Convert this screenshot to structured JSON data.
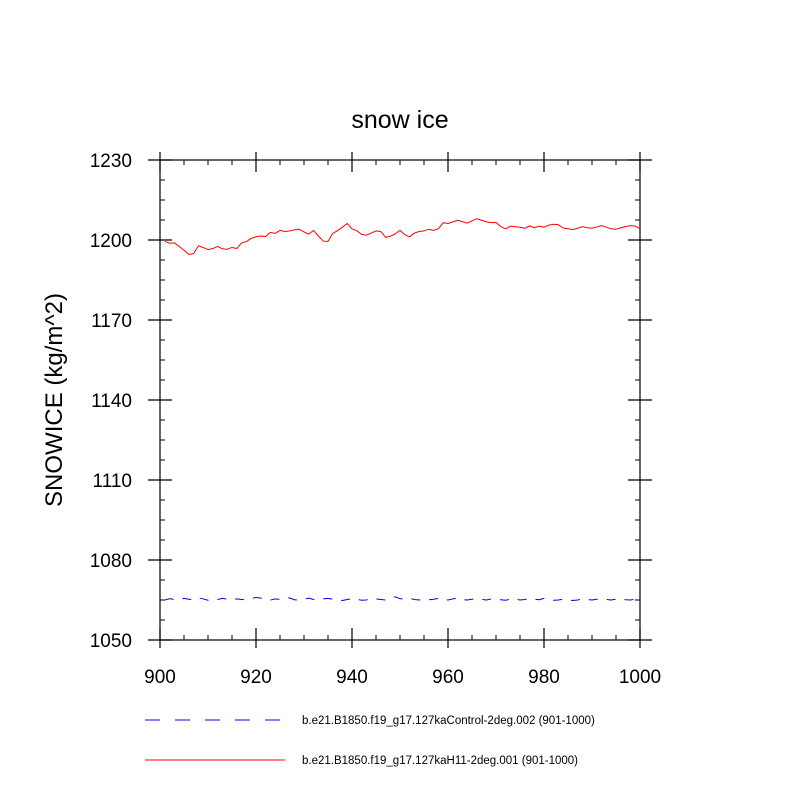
{
  "chart_data": {
    "type": "line",
    "title": "snow ice",
    "xlabel": "",
    "ylabel": "SNOWICE  (kg/m^2)",
    "xlim": [
      900,
      1000
    ],
    "ylim": [
      1050,
      1230
    ],
    "xticks": [
      900,
      920,
      940,
      960,
      980,
      1000
    ],
    "yticks": [
      1050,
      1080,
      1110,
      1140,
      1170,
      1200,
      1230
    ],
    "grid": false,
    "legend_position": "bottom",
    "series": [
      {
        "name": "b.e21.B1850.f19_g17.127kaControl-2deg.002 (901-1000)",
        "color": "#0000ff",
        "dash": "dashed",
        "x": [
          901,
          902,
          903,
          904,
          905,
          906,
          907,
          908,
          909,
          910,
          911,
          912,
          913,
          914,
          915,
          916,
          917,
          918,
          919,
          920,
          921,
          922,
          923,
          924,
          925,
          926,
          927,
          928,
          929,
          930,
          931,
          932,
          933,
          934,
          935,
          936,
          937,
          938,
          939,
          940,
          941,
          942,
          943,
          944,
          945,
          946,
          947,
          948,
          949,
          950,
          951,
          952,
          953,
          954,
          955,
          956,
          957,
          958,
          959,
          960,
          961,
          962,
          963,
          964,
          965,
          966,
          967,
          968,
          969,
          970,
          971,
          972,
          973,
          974,
          975,
          976,
          977,
          978,
          979,
          980,
          981,
          982,
          983,
          984,
          985,
          986,
          987,
          988,
          989,
          990,
          991,
          992,
          993,
          994,
          995,
          996,
          997,
          998,
          999,
          1000
        ],
        "values": [
          1065.0,
          1065.5,
          1065.2,
          1065.0,
          1065.6,
          1065.3,
          1065.1,
          1065.8,
          1065.4,
          1064.9,
          1065.0,
          1065.2,
          1065.6,
          1065.3,
          1065.0,
          1065.4,
          1065.2,
          1065.1,
          1065.5,
          1066.0,
          1065.7,
          1065.3,
          1065.0,
          1065.4,
          1065.2,
          1065.6,
          1065.8,
          1065.1,
          1064.9,
          1065.3,
          1065.7,
          1065.2,
          1065.0,
          1065.4,
          1065.6,
          1065.3,
          1065.1,
          1064.8,
          1065.2,
          1065.5,
          1065.3,
          1064.9,
          1065.0,
          1065.6,
          1065.4,
          1065.2,
          1065.0,
          1065.7,
          1066.2,
          1065.5,
          1065.3,
          1065.6,
          1065.2,
          1065.0,
          1065.4,
          1065.1,
          1065.3,
          1065.6,
          1065.2,
          1065.0,
          1065.4,
          1065.7,
          1065.2,
          1065.0,
          1065.3,
          1065.5,
          1065.2,
          1065.0,
          1065.4,
          1065.6,
          1065.1,
          1064.9,
          1065.3,
          1065.4,
          1065.0,
          1065.2,
          1065.5,
          1065.3,
          1065.1,
          1065.6,
          1065.2,
          1064.9,
          1065.0,
          1065.3,
          1065.1,
          1064.8,
          1065.0,
          1065.4,
          1065.2,
          1065.0,
          1065.3,
          1065.4,
          1065.2,
          1065.0,
          1065.3,
          1065.5,
          1065.1,
          1065.0,
          1065.3,
          1065.2
        ]
      },
      {
        "name": "b.e21.B1850.f19_g17.127kaH11-2deg.001 (901-1000)",
        "color": "#ff0000",
        "dash": "solid",
        "x": [
          901,
          902,
          903,
          904,
          905,
          906,
          907,
          908,
          909,
          910,
          911,
          912,
          913,
          914,
          915,
          916,
          917,
          918,
          919,
          920,
          921,
          922,
          923,
          924,
          925,
          926,
          927,
          928,
          929,
          930,
          931,
          932,
          933,
          934,
          935,
          936,
          937,
          938,
          939,
          940,
          941,
          942,
          943,
          944,
          945,
          946,
          947,
          948,
          949,
          950,
          951,
          952,
          953,
          954,
          955,
          956,
          957,
          958,
          959,
          960,
          961,
          962,
          963,
          964,
          965,
          966,
          967,
          968,
          969,
          970,
          971,
          972,
          973,
          974,
          975,
          976,
          977,
          978,
          979,
          980,
          981,
          982,
          983,
          984,
          985,
          986,
          987,
          988,
          989,
          990,
          991,
          992,
          993,
          994,
          995,
          996,
          997,
          998,
          999,
          1000
        ],
        "values": [
          1199.5,
          1198.8,
          1198.9,
          1197.6,
          1196.2,
          1194.6,
          1194.9,
          1197.8,
          1197.2,
          1196.4,
          1196.8,
          1197.6,
          1196.7,
          1196.5,
          1197.2,
          1196.8,
          1198.9,
          1199.4,
          1200.6,
          1201.2,
          1201.5,
          1201.3,
          1202.8,
          1202.5,
          1203.6,
          1203.2,
          1203.4,
          1203.8,
          1204.1,
          1203.0,
          1202.2,
          1203.6,
          1201.5,
          1199.6,
          1199.5,
          1202.5,
          1203.5,
          1204.8,
          1206.2,
          1204.2,
          1203.5,
          1202.1,
          1201.8,
          1202.6,
          1203.4,
          1203.2,
          1201.0,
          1201.4,
          1202.3,
          1203.6,
          1202.0,
          1201.2,
          1202.6,
          1203.2,
          1203.4,
          1204.0,
          1203.6,
          1204.2,
          1206.5,
          1206.2,
          1206.8,
          1207.4,
          1206.9,
          1206.3,
          1207.2,
          1208.0,
          1207.4,
          1206.8,
          1206.5,
          1206.6,
          1205.0,
          1204.2,
          1205.2,
          1205.0,
          1204.8,
          1204.4,
          1205.3,
          1204.6,
          1205.2,
          1204.8,
          1205.6,
          1205.9,
          1205.7,
          1204.5,
          1204.2,
          1203.9,
          1204.4,
          1205.0,
          1204.6,
          1204.4,
          1204.9,
          1205.4,
          1204.8,
          1204.2,
          1204.0,
          1204.6,
          1205.0,
          1205.4,
          1205.2,
          1204.3
        ]
      }
    ]
  }
}
